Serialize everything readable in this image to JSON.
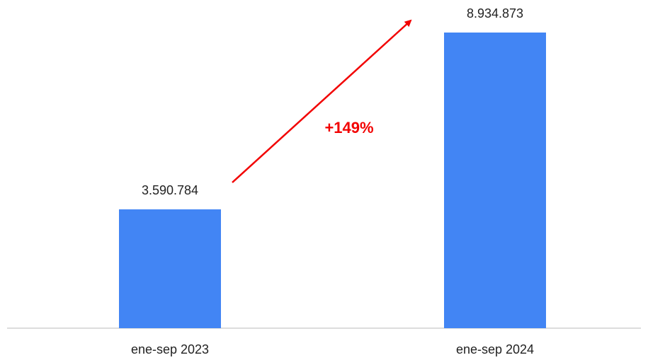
{
  "chart_data": {
    "type": "bar",
    "categories": [
      "ene-sep 2023",
      "ene-sep 2024"
    ],
    "values": [
      3590784,
      8934873
    ],
    "value_labels": [
      "3.590.784",
      "8.934.873"
    ],
    "color": "#4285f4",
    "annotation": "+149%"
  }
}
